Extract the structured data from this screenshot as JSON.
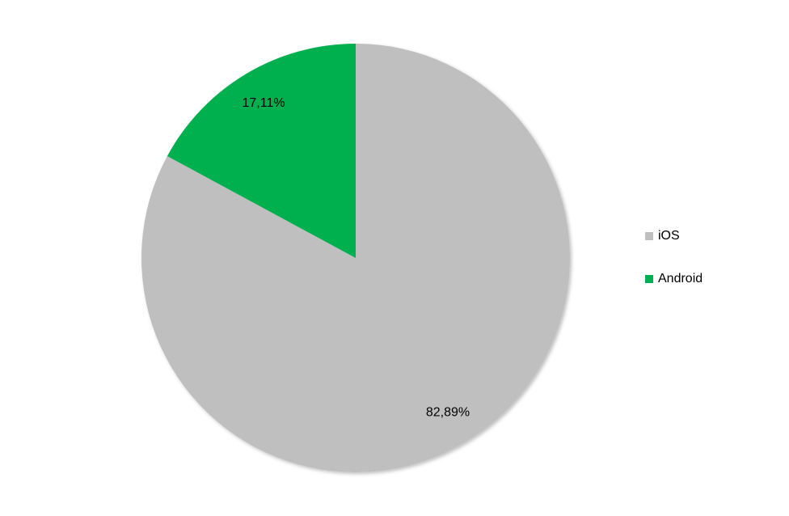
{
  "chart_data": {
    "type": "pie",
    "categories": [
      "iOS",
      "Android"
    ],
    "values": [
      82.89,
      17.11
    ],
    "value_labels": [
      "82,89%",
      "17,11%"
    ],
    "colors": [
      "#bfbfbf",
      "#00b050"
    ],
    "legend": "right"
  }
}
